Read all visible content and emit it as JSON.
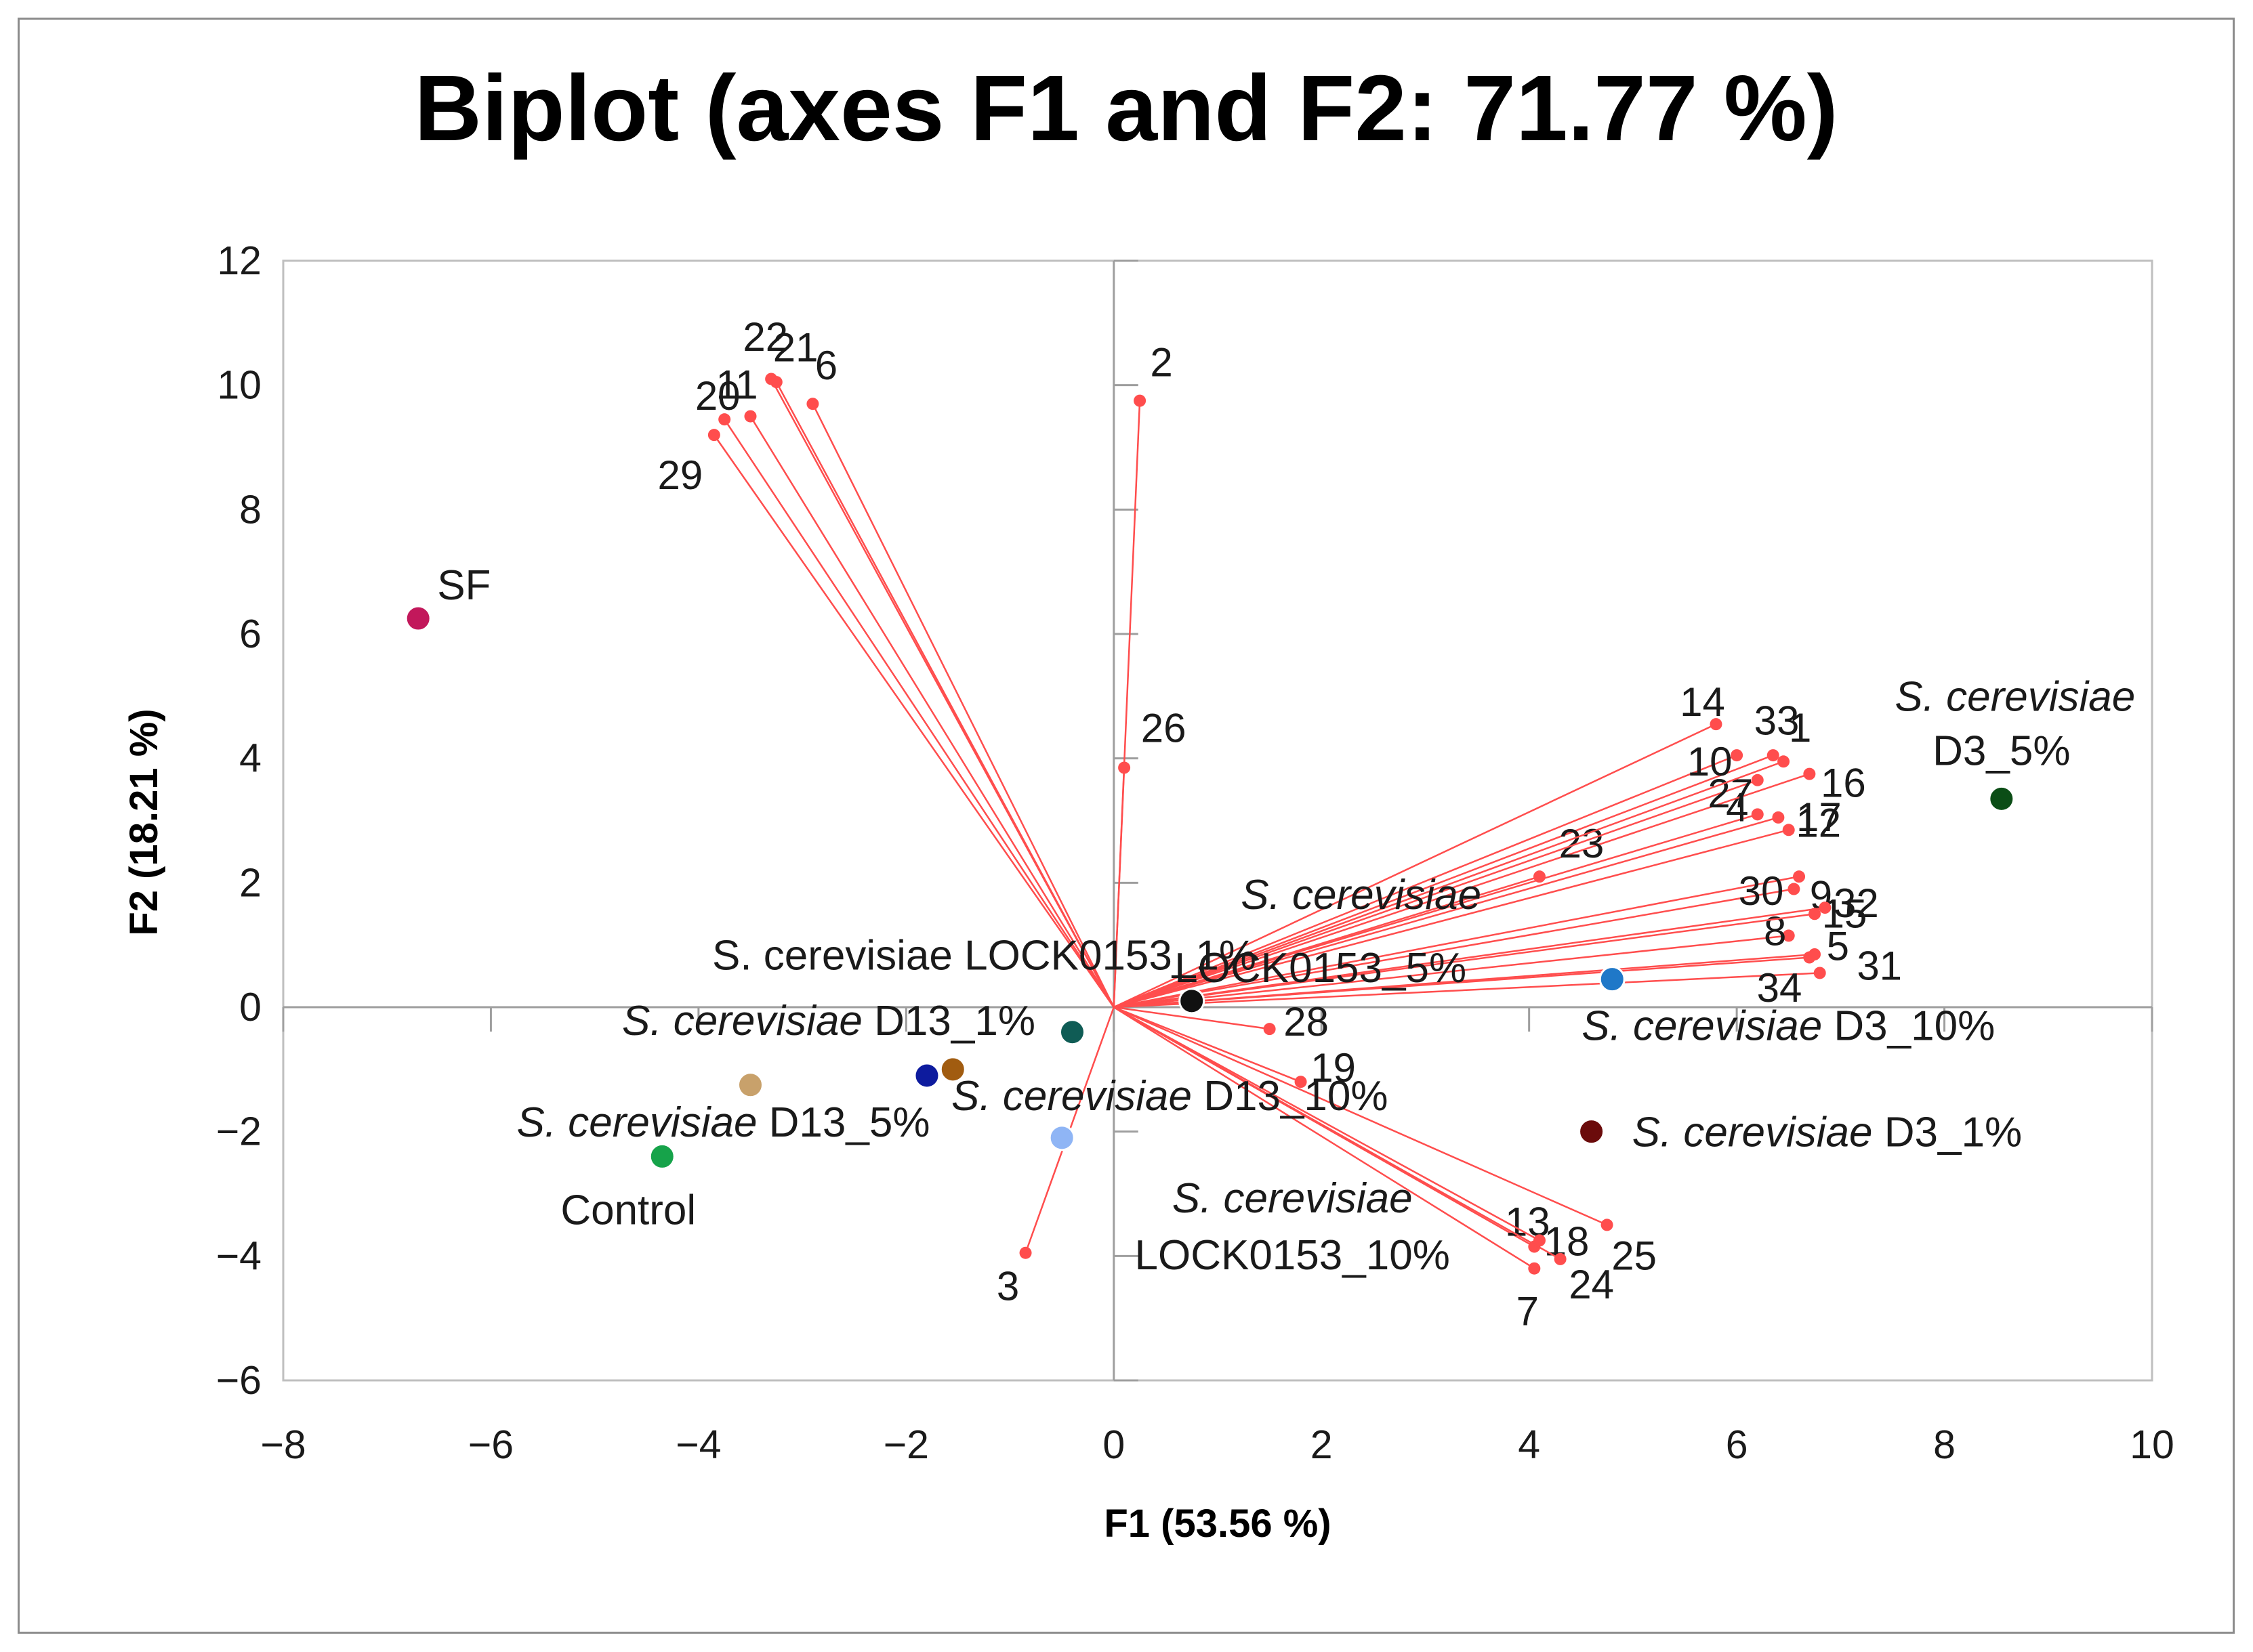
{
  "chart_data": {
    "type": "scatter",
    "title": "Biplot (axes F1 and F2: 71.77 %)",
    "xlabel": "F1 (53.56 %)",
    "ylabel": "F2 (18.21 %)",
    "xlim": [
      -8,
      10
    ],
    "ylim": [
      -6,
      12
    ],
    "x_ticks": [
      -8,
      -6,
      -4,
      -2,
      0,
      2,
      4,
      6,
      8,
      10
    ],
    "y_ticks": [
      -6,
      -4,
      -2,
      0,
      2,
      4,
      6,
      8,
      10,
      12
    ],
    "x_tick_labels": [
      "−8",
      "−6",
      "−4",
      "−2",
      "0",
      "2",
      "4",
      "6",
      "8",
      "10"
    ],
    "y_tick_labels": [
      "−6",
      "−4",
      "−2",
      "0",
      "2",
      "4",
      "6",
      "8",
      "10",
      "12"
    ],
    "grid": false,
    "vector_color": "#ff4d4d",
    "variables": [
      {
        "label": "1",
        "x": 6.35,
        "y": 4.05
      },
      {
        "label": "2",
        "x": 0.25,
        "y": 9.75
      },
      {
        "label": "3",
        "x": -0.85,
        "y": -3.95
      },
      {
        "label": "4",
        "x": 6.2,
        "y": 3.1
      },
      {
        "label": "5",
        "x": 6.7,
        "y": 0.8
      },
      {
        "label": "6",
        "x": -2.9,
        "y": 9.7
      },
      {
        "label": "7",
        "x": 4.05,
        "y": -4.2
      },
      {
        "label": "8",
        "x": 6.5,
        "y": 1.15
      },
      {
        "label": "9",
        "x": 6.55,
        "y": 1.9
      },
      {
        "label": "10",
        "x": 6.0,
        "y": 4.05
      },
      {
        "label": "11",
        "x": -3.5,
        "y": 9.5
      },
      {
        "label": "12",
        "x": 6.5,
        "y": 2.85
      },
      {
        "label": "13",
        "x": 4.05,
        "y": -3.85
      },
      {
        "label": "14",
        "x": 5.8,
        "y": 4.55
      },
      {
        "label": "15",
        "x": 6.75,
        "y": 1.5
      },
      {
        "label": "16",
        "x": 6.7,
        "y": 3.75
      },
      {
        "label": "17",
        "x": 6.4,
        "y": 3.05
      },
      {
        "label": "18",
        "x": 4.1,
        "y": -3.75
      },
      {
        "label": "19",
        "x": 1.8,
        "y": -1.2
      },
      {
        "label": "20",
        "x": -3.75,
        "y": 9.45
      },
      {
        "label": "21",
        "x": -3.3,
        "y": 10.1
      },
      {
        "label": "22",
        "x": -3.25,
        "y": 10.05
      },
      {
        "label": "23",
        "x": 4.1,
        "y": 2.1
      },
      {
        "label": "24",
        "x": 4.3,
        "y": -4.05
      },
      {
        "label": "25",
        "x": 4.75,
        "y": -3.5
      },
      {
        "label": "26",
        "x": 0.1,
        "y": 3.85
      },
      {
        "label": "27",
        "x": 6.2,
        "y": 3.65
      },
      {
        "label": "28",
        "x": 1.5,
        "y": -0.35
      },
      {
        "label": "29",
        "x": -3.85,
        "y": 9.2
      },
      {
        "label": "30",
        "x": 6.6,
        "y": 2.1
      },
      {
        "label": "31",
        "x": 6.8,
        "y": 0.55
      },
      {
        "label": "32",
        "x": 6.85,
        "y": 1.6
      },
      {
        "label": "33",
        "x": 6.45,
        "y": 3.95
      },
      {
        "label": "34",
        "x": 6.75,
        "y": 0.85
      }
    ],
    "observations": [
      {
        "label": "SF",
        "x": -6.7,
        "y": 6.25,
        "color": "#c2185b"
      },
      {
        "label": "Control",
        "x": -4.35,
        "y": -2.4,
        "color": "#16a34a"
      },
      {
        "label": "S. cerevisiae D13_5%",
        "x": -3.5,
        "y": -1.25,
        "color": "#c8a16b"
      },
      {
        "label": "S. cerevisiae D13_1%",
        "x": -1.8,
        "y": -1.1,
        "color": "#0d1b9e"
      },
      {
        "label": "S. cerevisiae D13_10%",
        "x": -1.55,
        "y": -1.0,
        "color": "#a15c10"
      },
      {
        "label": "S. cerevisiae LOCK0153_1%",
        "x": -0.4,
        "y": -0.4,
        "color": "#0f5c55"
      },
      {
        "label": "S. cerevisiae LOCK0153_10%",
        "x": -0.5,
        "y": -2.1,
        "color": "#8fb5f5"
      },
      {
        "label": "S. cerevisiae LOCK0153_5%",
        "x": 0.75,
        "y": 0.1,
        "color": "#111111"
      },
      {
        "label": "S. cerevisiae D3_10%",
        "x": 4.8,
        "y": 0.45,
        "color": "#1f78c8"
      },
      {
        "label": "S. cerevisiae D3_1%",
        "x": 4.6,
        "y": -2.0,
        "color": "#6b0b0b"
      },
      {
        "label": "S. cerevisiae D3_5%",
        "x": 8.55,
        "y": 3.35,
        "color": "#0b4d16"
      }
    ]
  }
}
